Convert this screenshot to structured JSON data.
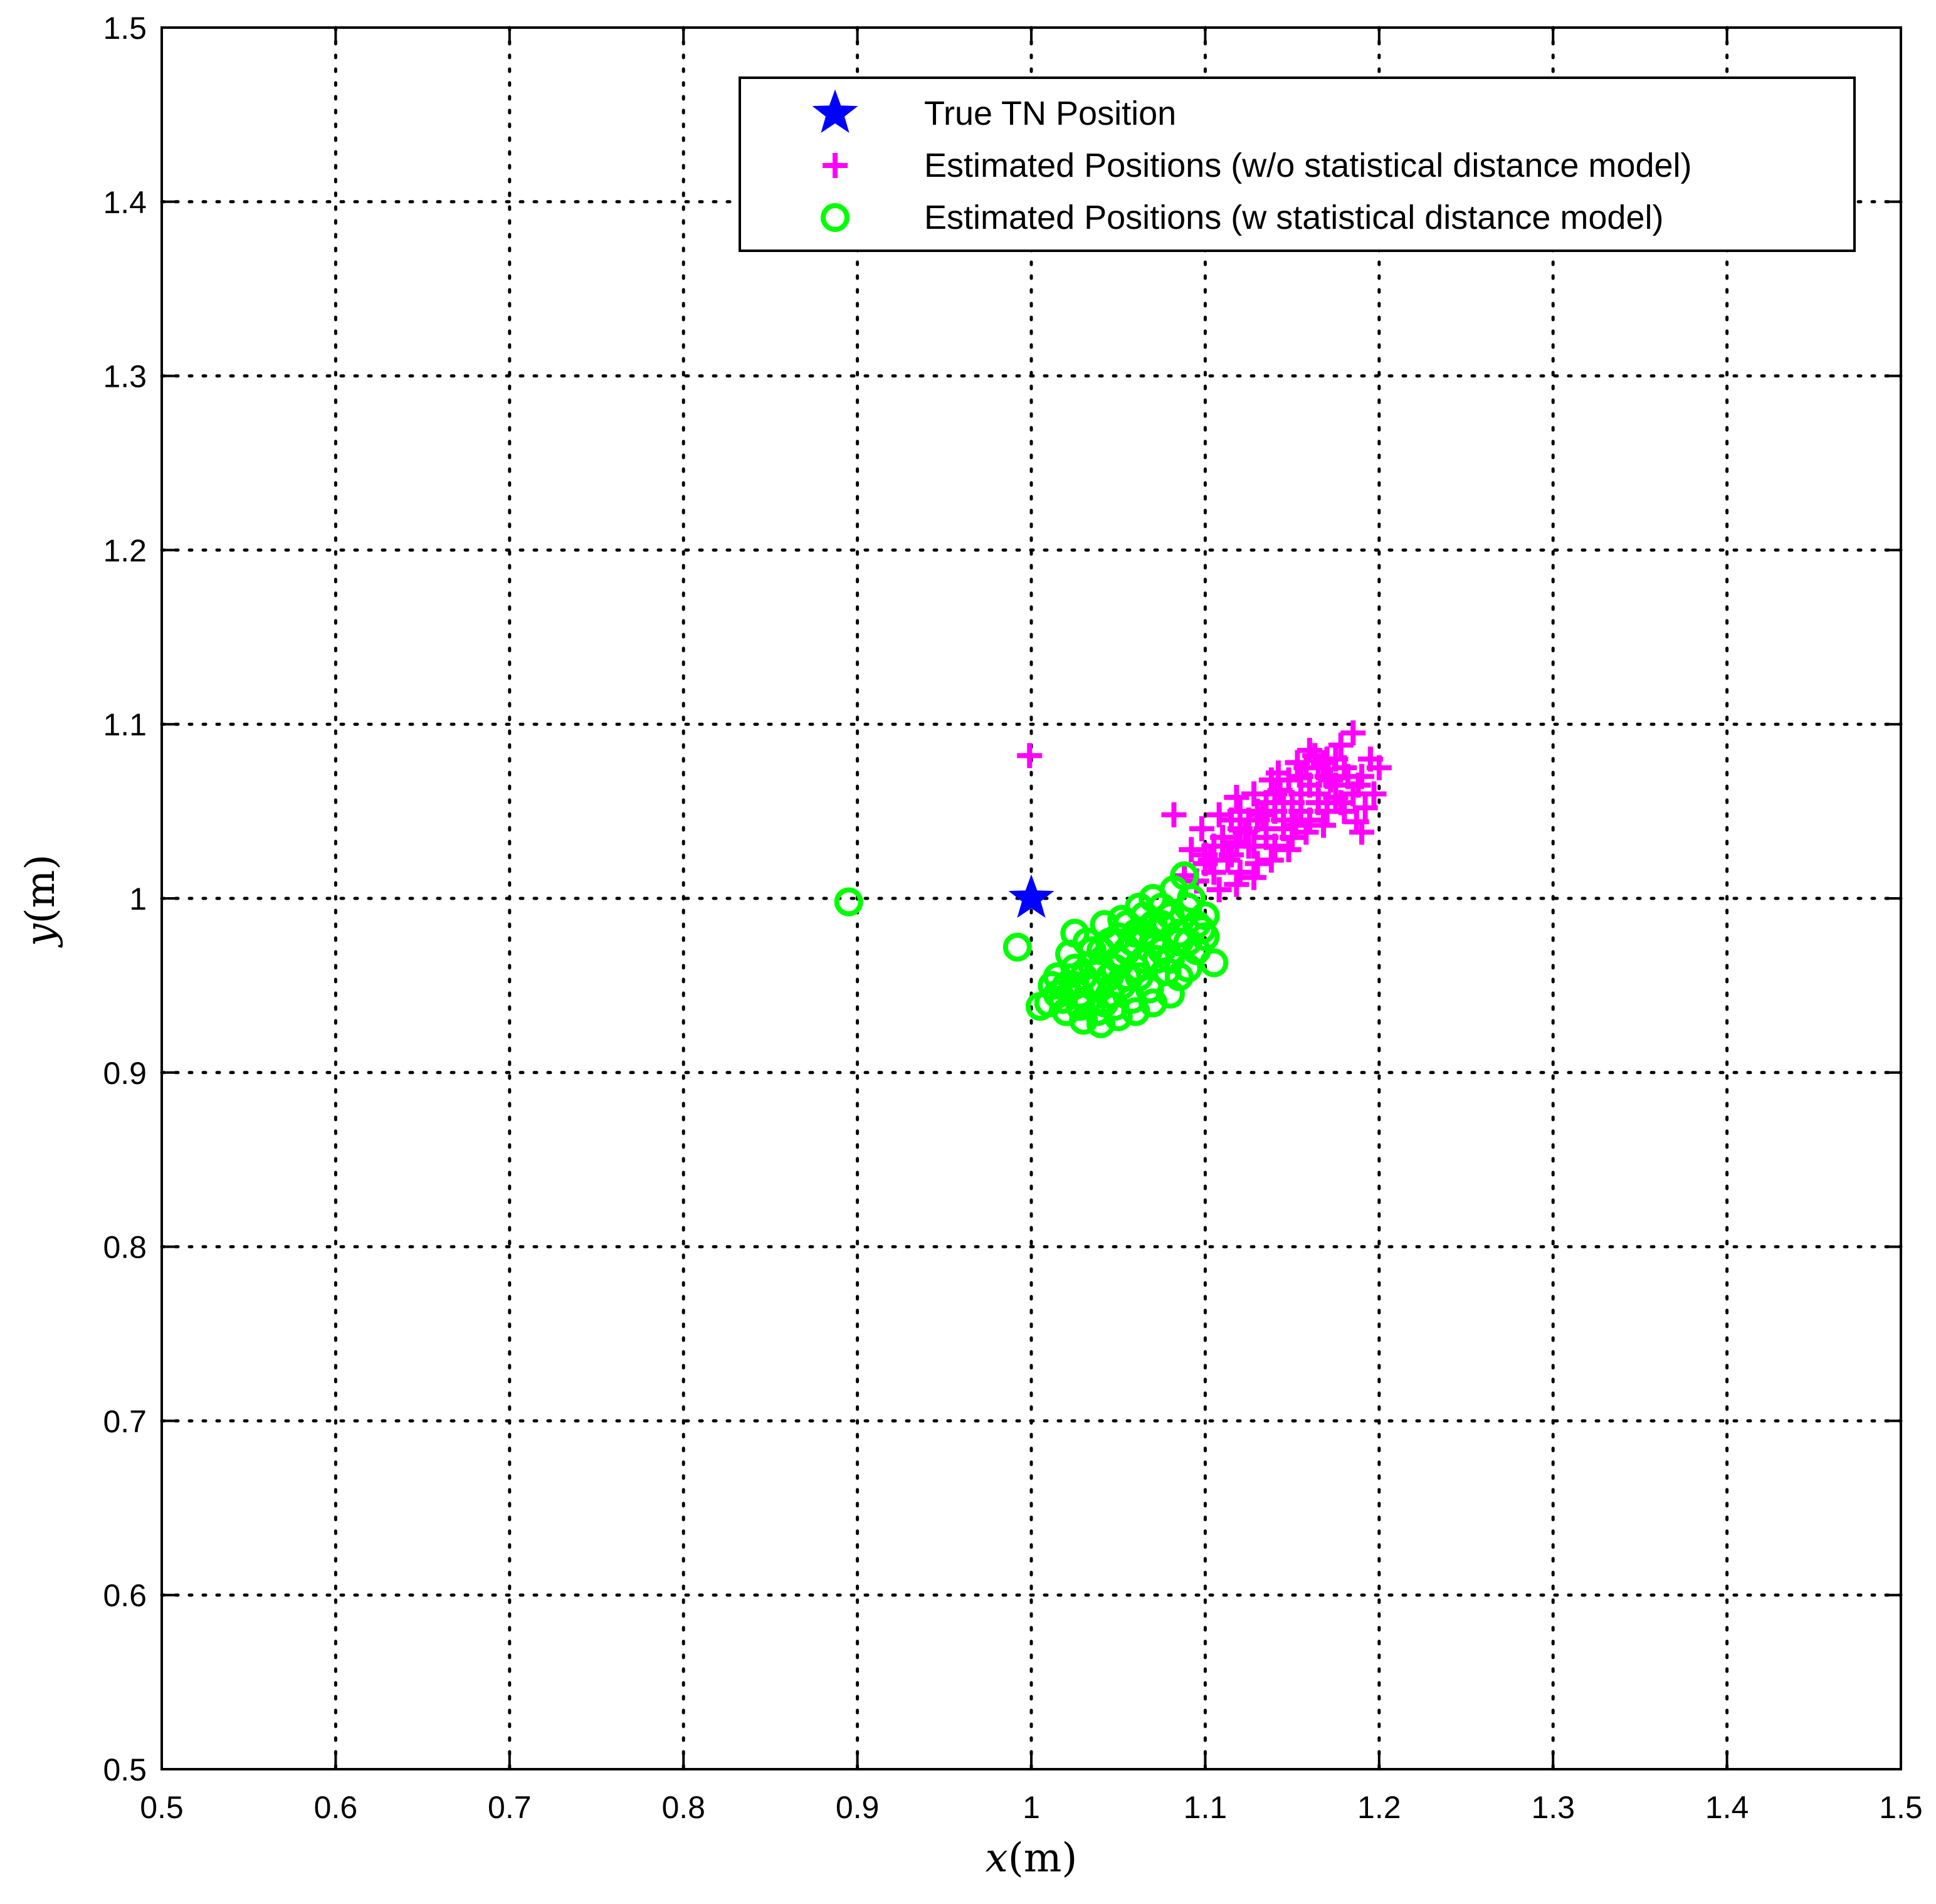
{
  "chart_data": {
    "type": "scatter",
    "title": "",
    "xlabel_var": "x",
    "xlabel_unit": "(m)",
    "ylabel_var": "y",
    "ylabel_unit": "(m)",
    "xlim": [
      0.5,
      1.5
    ],
    "ylim": [
      0.5,
      1.5
    ],
    "grid": true,
    "legend_position": "top-right",
    "x_ticks": [
      "0.5",
      "0.6",
      "0.7",
      "0.8",
      "0.9",
      "1",
      "1.1",
      "1.2",
      "1.3",
      "1.4",
      "1.5"
    ],
    "y_ticks": [
      "0.5",
      "0.6",
      "0.7",
      "0.8",
      "0.9",
      "1",
      "1.1",
      "1.2",
      "1.3",
      "1.4",
      "1.5"
    ],
    "series": [
      {
        "name": "True TN Position",
        "marker": "star",
        "color": "#0000ff",
        "points": [
          [
            1.0,
            1.0
          ]
        ]
      },
      {
        "name": "Estimated Positions (w/o statistical distance model)",
        "marker": "plus",
        "color": "#ff00ff",
        "points": [
          [
            0.999,
            1.082
          ],
          [
            1.082,
            1.048
          ],
          [
            1.088,
            1.013
          ],
          [
            1.185,
            1.095
          ],
          [
            1.19,
            1.038
          ],
          [
            1.2,
            1.075
          ],
          [
            1.197,
            1.06
          ],
          [
            1.16,
            1.085
          ],
          [
            1.175,
            1.08
          ],
          [
            1.18,
            1.05
          ],
          [
            1.17,
            1.07
          ],
          [
            1.165,
            1.06
          ],
          [
            1.155,
            1.07
          ],
          [
            1.15,
            1.055
          ],
          [
            1.145,
            1.045
          ],
          [
            1.14,
            1.06
          ],
          [
            1.135,
            1.04
          ],
          [
            1.13,
            1.05
          ],
          [
            1.125,
            1.03
          ],
          [
            1.12,
            1.04
          ],
          [
            1.115,
            1.025
          ],
          [
            1.11,
            1.035
          ],
          [
            1.105,
            1.015
          ],
          [
            1.1,
            1.025
          ],
          [
            1.095,
            1.01
          ],
          [
            1.12,
            1.015
          ],
          [
            1.13,
            1.02
          ],
          [
            1.14,
            1.03
          ],
          [
            1.15,
            1.035
          ],
          [
            1.16,
            1.045
          ],
          [
            1.17,
            1.05
          ],
          [
            1.175,
            1.065
          ],
          [
            1.185,
            1.06
          ],
          [
            1.19,
            1.07
          ],
          [
            1.195,
            1.08
          ],
          [
            1.18,
            1.075
          ],
          [
            1.17,
            1.08
          ],
          [
            1.165,
            1.075
          ],
          [
            1.16,
            1.065
          ],
          [
            1.155,
            1.05
          ],
          [
            1.15,
            1.045
          ],
          [
            1.145,
            1.055
          ],
          [
            1.14,
            1.05
          ],
          [
            1.135,
            1.055
          ],
          [
            1.13,
            1.045
          ],
          [
            1.125,
            1.045
          ],
          [
            1.12,
            1.05
          ],
          [
            1.115,
            1.045
          ],
          [
            1.11,
            1.03
          ],
          [
            1.105,
            1.03
          ],
          [
            1.1,
            1.02
          ],
          [
            1.108,
            1.005
          ],
          [
            1.118,
            1.008
          ],
          [
            1.128,
            1.012
          ],
          [
            1.138,
            1.022
          ],
          [
            1.148,
            1.028
          ],
          [
            1.158,
            1.038
          ],
          [
            1.168,
            1.042
          ],
          [
            1.178,
            1.055
          ],
          [
            1.188,
            1.065
          ],
          [
            1.178,
            1.088
          ],
          [
            1.168,
            1.078
          ],
          [
            1.158,
            1.075
          ],
          [
            1.148,
            1.068
          ],
          [
            1.138,
            1.068
          ],
          [
            1.128,
            1.06
          ],
          [
            1.118,
            1.058
          ],
          [
            1.108,
            1.048
          ],
          [
            1.098,
            1.04
          ],
          [
            1.092,
            1.028
          ],
          [
            1.135,
            1.035
          ],
          [
            1.145,
            1.04
          ],
          [
            1.155,
            1.06
          ],
          [
            1.165,
            1.055
          ],
          [
            1.175,
            1.058
          ],
          [
            1.123,
            1.038
          ],
          [
            1.133,
            1.048
          ],
          [
            1.143,
            1.062
          ],
          [
            1.153,
            1.078
          ],
          [
            1.163,
            1.082
          ],
          [
            1.113,
            1.022
          ],
          [
            1.103,
            1.022
          ],
          [
            1.128,
            1.03
          ],
          [
            1.152,
            1.042
          ],
          [
            1.172,
            1.068
          ],
          [
            1.182,
            1.07
          ],
          [
            1.192,
            1.052
          ],
          [
            1.187,
            1.044
          ],
          [
            1.142,
            1.072
          ],
          [
            1.118,
            1.032
          ]
        ]
      },
      {
        "name": "Estimated Positions (w statistical distance model)",
        "marker": "circle",
        "color": "#00ff00",
        "points": [
          [
            0.895,
            0.998
          ],
          [
            0.992,
            0.972
          ],
          [
            1.105,
            0.963
          ],
          [
            1.088,
            1.013
          ],
          [
            1.025,
            0.98
          ],
          [
            1.07,
            1.0
          ],
          [
            1.09,
            0.995
          ],
          [
            1.095,
            0.985
          ],
          [
            1.085,
            0.975
          ],
          [
            1.08,
            0.99
          ],
          [
            1.075,
            0.985
          ],
          [
            1.07,
            0.975
          ],
          [
            1.065,
            0.99
          ],
          [
            1.06,
            0.98
          ],
          [
            1.055,
            0.97
          ],
          [
            1.05,
            0.965
          ],
          [
            1.045,
            0.975
          ],
          [
            1.04,
            0.96
          ],
          [
            1.035,
            0.97
          ],
          [
            1.03,
            0.955
          ],
          [
            1.025,
            0.96
          ],
          [
            1.02,
            0.95
          ],
          [
            1.015,
            0.945
          ],
          [
            1.01,
            0.94
          ],
          [
            1.005,
            0.938
          ],
          [
            1.02,
            0.935
          ],
          [
            1.03,
            0.93
          ],
          [
            1.04,
            0.928
          ],
          [
            1.05,
            0.932
          ],
          [
            1.06,
            0.935
          ],
          [
            1.07,
            0.94
          ],
          [
            1.08,
            0.945
          ],
          [
            1.085,
            0.955
          ],
          [
            1.09,
            0.96
          ],
          [
            1.095,
            0.97
          ],
          [
            1.1,
            0.978
          ],
          [
            1.1,
            0.99
          ],
          [
            1.092,
            1.0
          ],
          [
            1.082,
            1.005
          ],
          [
            1.075,
            0.995
          ],
          [
            1.065,
            0.98
          ],
          [
            1.058,
            0.975
          ],
          [
            1.048,
            0.96
          ],
          [
            1.038,
            0.95
          ],
          [
            1.028,
            0.945
          ],
          [
            1.018,
            0.942
          ],
          [
            1.012,
            0.95
          ],
          [
            1.022,
            0.968
          ],
          [
            1.032,
            0.975
          ],
          [
            1.042,
            0.985
          ],
          [
            1.052,
            0.988
          ],
          [
            1.062,
            0.995
          ],
          [
            1.072,
            0.965
          ],
          [
            1.062,
            0.955
          ],
          [
            1.052,
            0.95
          ],
          [
            1.042,
            0.94
          ],
          [
            1.032,
            0.94
          ],
          [
            1.045,
            0.945
          ],
          [
            1.055,
            0.955
          ],
          [
            1.065,
            0.965
          ],
          [
            1.075,
            0.97
          ],
          [
            1.085,
            0.98
          ],
          [
            1.078,
            0.958
          ],
          [
            1.068,
            0.948
          ],
          [
            1.058,
            0.942
          ],
          [
            1.048,
            0.938
          ],
          [
            1.038,
            0.935
          ],
          [
            1.028,
            0.938
          ],
          [
            1.035,
            0.962
          ],
          [
            1.045,
            0.955
          ],
          [
            1.06,
            0.96
          ],
          [
            1.07,
            0.985
          ],
          [
            1.08,
            0.965
          ],
          [
            1.09,
            0.975
          ],
          [
            1.098,
            0.982
          ],
          [
            1.025,
            0.95
          ],
          [
            1.015,
            0.955
          ],
          [
            1.04,
            0.97
          ],
          [
            1.05,
            0.978
          ],
          [
            1.055,
            0.985
          ]
        ]
      }
    ]
  }
}
